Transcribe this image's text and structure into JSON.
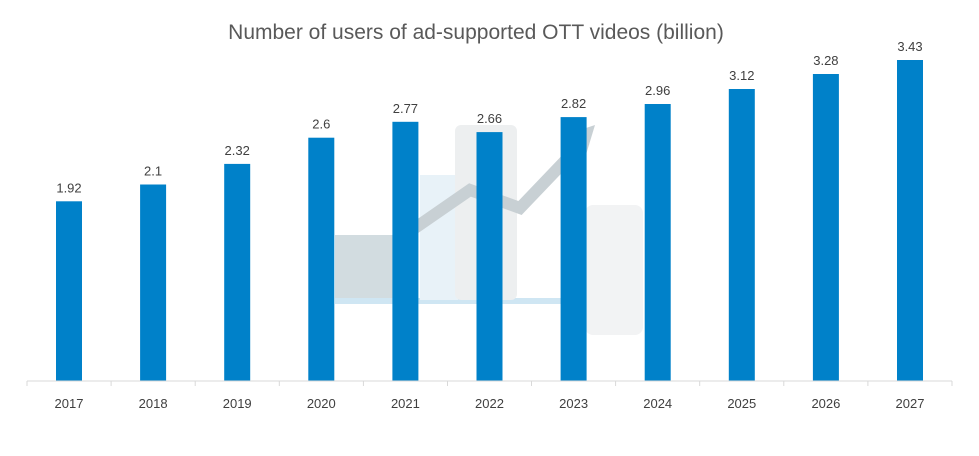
{
  "chart_data": {
    "type": "bar",
    "title": "Number of users of ad-supported OTT videos (billion)",
    "xlabel": "",
    "ylabel": "",
    "categories": [
      "2017",
      "2018",
      "2019",
      "2020",
      "2021",
      "2022",
      "2023",
      "2024",
      "2025",
      "2026",
      "2027"
    ],
    "values": [
      1.92,
      2.1,
      2.32,
      2.6,
      2.77,
      2.66,
      2.82,
      2.96,
      3.12,
      3.28,
      3.43
    ],
    "value_labels": [
      "1.92",
      "2.1",
      "2.32",
      "2.6",
      "2.77",
      "2.66",
      "2.82",
      "2.96",
      "3.12",
      "3.28",
      "3.43"
    ],
    "ylim": [
      0,
      3.43
    ],
    "grid": false,
    "legend": "none",
    "bar_color": "#0081C9",
    "axis_color": "#D9D9D9",
    "watermark_icon": "laptop-chart-hand-icon"
  }
}
